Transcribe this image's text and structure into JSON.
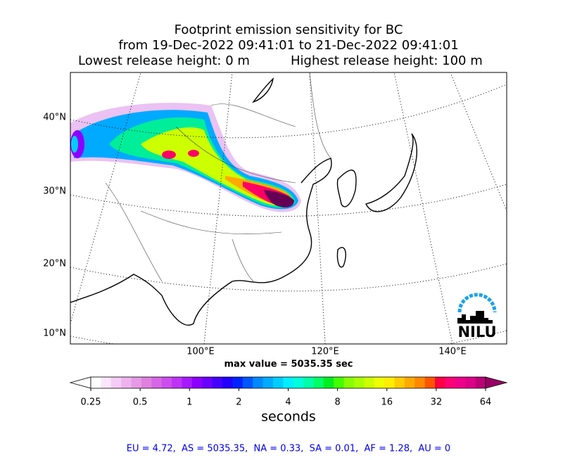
{
  "title": [
    "Footprint emission sensitivity for BC",
    "from 19-Dec-2022 09:41:01 to 21-Dec-2022 09:41:01",
    "Lowest release height: 0 m",
    "Highest release height: 100 m"
  ],
  "map": {
    "lat_labels": [
      "40°N",
      "30°N",
      "20°N",
      "10°N"
    ],
    "lon_labels": [
      "100°E",
      "120°E",
      "140°E"
    ],
    "logo": "NILU"
  },
  "max_label": "max value = 5035.35 sec",
  "colorbar": {
    "label": "seconds",
    "scale": "log",
    "lim": [
      0.25,
      64
    ],
    "ticks": [
      0.25,
      0.5,
      1,
      2,
      4,
      8,
      16,
      32,
      64
    ],
    "colors": [
      "#ffffff",
      "#fbe6fb",
      "#f5ccf5",
      "#eeb3ee",
      "#e699e6",
      "#df80df",
      "#d666e6",
      "#cc4dee",
      "#bf33f5",
      "#a61aff",
      "#8c00ff",
      "#6a00ff",
      "#4400ff",
      "#2200ff",
      "#0022ff",
      "#0055ff",
      "#0088ff",
      "#00aaff",
      "#00ccff",
      "#00eeff",
      "#00ffdd",
      "#00ffaa",
      "#00ff66",
      "#00ee22",
      "#44ff00",
      "#88ff00",
      "#aaff00",
      "#ccff00",
      "#eeff00",
      "#ffee00",
      "#ffcc00",
      "#ffaa00",
      "#ff8800",
      "#ff5500",
      "#ff0044",
      "#ff0077",
      "#ee0088",
      "#dd0088",
      "#bb0077",
      "#990066",
      "#660055"
    ]
  },
  "footer": "EU = 4.72,  AS = 5035.35,  NA = 0.33,  SA = 0.01,  AF = 1.28,  AU = 0"
}
